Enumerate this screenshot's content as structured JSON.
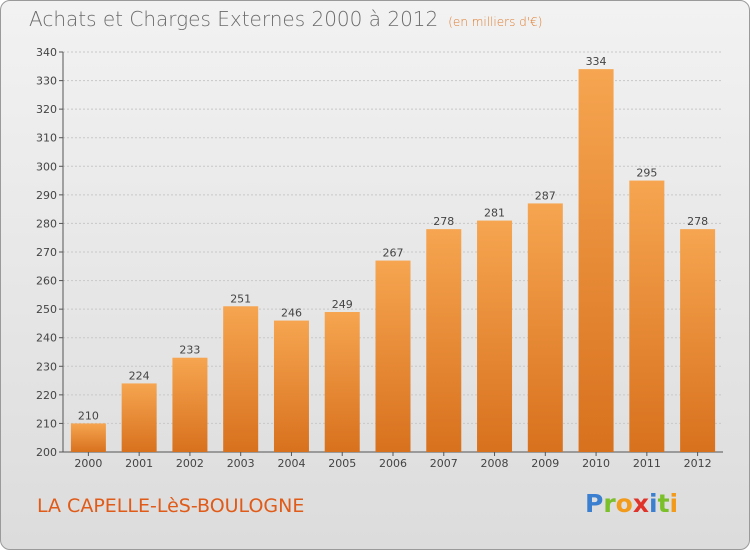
{
  "header": {
    "title": "Achats et Charges Externes 2000 à 2012",
    "unit": "(en milliers d'€)"
  },
  "footer": {
    "location": "LA CAPELLE-LèS-BOULOGNE",
    "brand": [
      "P",
      "r",
      "o",
      "x",
      "i",
      "t",
      "i"
    ],
    "brand_colors": [
      "#3a7fd0",
      "#7bbf2a",
      "#f29a1a",
      "#e0342a",
      "#3a7fd0",
      "#7bbf2a",
      "#f29a1a"
    ]
  },
  "colors": {
    "bar_top": "#f6a550",
    "bar_bottom": "#d8711e",
    "grid": "#c8c8c8",
    "axis": "#555555"
  },
  "chart_data": {
    "type": "bar",
    "title": "Achats et Charges Externes 2000 à 2012",
    "subtitle": "(en milliers d'€)",
    "categories": [
      "2000",
      "2001",
      "2002",
      "2003",
      "2004",
      "2005",
      "2006",
      "2007",
      "2008",
      "2009",
      "2010",
      "2011",
      "2012"
    ],
    "values": [
      210,
      224,
      233,
      251,
      246,
      249,
      267,
      278,
      281,
      287,
      334,
      295,
      278
    ],
    "ylim": [
      200,
      340
    ],
    "yticks": [
      200,
      210,
      220,
      230,
      240,
      250,
      260,
      270,
      280,
      290,
      300,
      310,
      320,
      330,
      340
    ],
    "grid": "horizontal",
    "data_labels": true
  }
}
